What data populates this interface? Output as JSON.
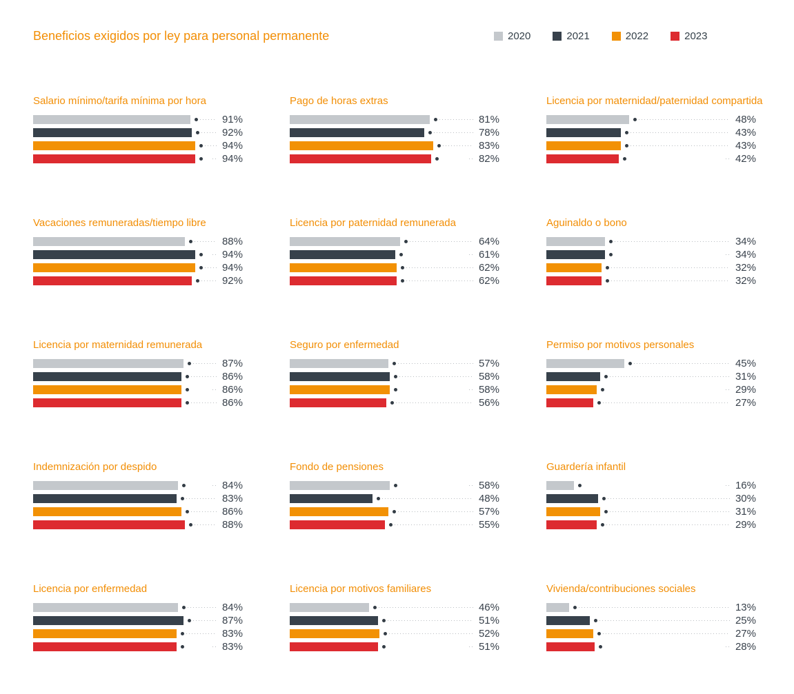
{
  "title": "Beneficios exigidos por ley para personal permanente",
  "legend": [
    {
      "label": "2020",
      "color": "#c4c8cc"
    },
    {
      "label": "2021",
      "color": "#37414b"
    },
    {
      "label": "2022",
      "color": "#f29105"
    },
    {
      "label": "2023",
      "color": "#dd2b30"
    }
  ],
  "colors": {
    "title_orange": "#f28e05",
    "value_text": "#39424c",
    "leader_dotted": "#b9bdc1",
    "marker_dot": "#333c45"
  },
  "chart_data": {
    "type": "bar",
    "orientation": "horizontal",
    "unit": "%",
    "xlim": [
      0,
      100
    ],
    "title": "Beneficios exigidos por ley para personal permanente",
    "categories": [
      "2020",
      "2021",
      "2022",
      "2023"
    ],
    "legend_position": "top-right",
    "grid": false,
    "charts": [
      {
        "title": "Salario mínimo/tarifa mínima por hora",
        "values": [
          91,
          92,
          94,
          94
        ],
        "labels": [
          "91%",
          "92%",
          "94%",
          "94%"
        ],
        "no_leader_index": 3
      },
      {
        "title": "Pago de horas extras",
        "values": [
          81,
          78,
          83,
          82
        ],
        "labels": [
          "81%",
          "78%",
          "83%",
          "82%"
        ],
        "no_leader_index": 3
      },
      {
        "title": "Licencia por maternidad/paternidad compartida",
        "values": [
          48,
          43,
          43,
          42
        ],
        "labels": [
          "48%",
          "43%",
          "43%",
          "42%"
        ],
        "no_leader_index": 3
      },
      {
        "title": "Vacaciones remuneradas/tiempo libre",
        "values": [
          88,
          94,
          94,
          92
        ],
        "labels": [
          "88%",
          "94%",
          "94%",
          "92%"
        ],
        "no_leader_index": 1
      },
      {
        "title": "Licencia por paternidad remunerada",
        "values": [
          64,
          61,
          62,
          62
        ],
        "labels": [
          "64%",
          "61%",
          "62%",
          "62%"
        ],
        "no_leader_index": 1
      },
      {
        "title": "Aguinaldo o bono",
        "values": [
          34,
          34,
          32,
          32
        ],
        "labels": [
          "34%",
          "34%",
          "32%",
          "32%"
        ],
        "no_leader_index": 1
      },
      {
        "title": "Licencia por maternidad remunerada",
        "values": [
          87,
          86,
          86,
          86
        ],
        "labels": [
          "87%",
          "86%",
          "86%",
          "86%"
        ],
        "no_leader_index": 2
      },
      {
        "title": "Seguro por enfermedad",
        "values": [
          57,
          58,
          58,
          56
        ],
        "labels": [
          "57%",
          "58%",
          "58%",
          "56%"
        ],
        "no_leader_index": 2
      },
      {
        "title": "Permiso por motivos personales",
        "values": [
          45,
          31,
          29,
          27
        ],
        "labels": [
          "45%",
          "31%",
          "29%",
          "27%"
        ],
        "no_leader_index": 2
      },
      {
        "title": "Indemnización por despido",
        "values": [
          84,
          83,
          86,
          88
        ],
        "labels": [
          "84%",
          "83%",
          "86%",
          "88%"
        ],
        "no_leader_index": 0
      },
      {
        "title": "Fondo de pensiones",
        "values": [
          58,
          48,
          57,
          55
        ],
        "labels": [
          "58%",
          "48%",
          "57%",
          "55%"
        ],
        "no_leader_index": 0
      },
      {
        "title": "Guardería infantil",
        "values": [
          16,
          30,
          31,
          29
        ],
        "labels": [
          "16%",
          "30%",
          "31%",
          "29%"
        ],
        "no_leader_index": 0
      },
      {
        "title": "Licencia por enfermedad",
        "values": [
          84,
          87,
          83,
          83
        ],
        "labels": [
          "84%",
          "87%",
          "83%",
          "83%"
        ],
        "no_leader_index": 3
      },
      {
        "title": "Licencia por motivos familiares",
        "values": [
          46,
          51,
          52,
          51
        ],
        "labels": [
          "46%",
          "51%",
          "52%",
          "51%"
        ],
        "no_leader_index": 3
      },
      {
        "title": "Vivienda/contribuciones sociales",
        "values": [
          13,
          25,
          27,
          28
        ],
        "labels": [
          "13%",
          "25%",
          "27%",
          "28%"
        ],
        "no_leader_index": 3
      }
    ]
  }
}
